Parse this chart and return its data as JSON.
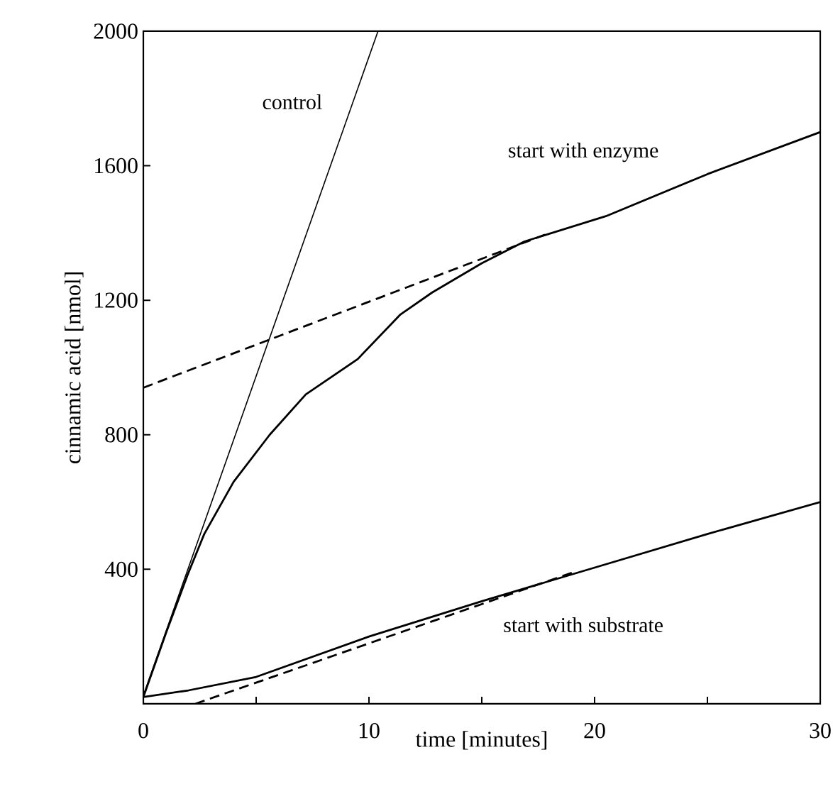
{
  "chart_data": {
    "type": "line",
    "xlabel": "time [minutes]",
    "ylabel": "cinnamic acid [nmol]",
    "xlim": [
      0,
      30
    ],
    "ylim": [
      0,
      2000
    ],
    "xticks": [
      0,
      {
        "value": 5,
        "label": null
      },
      10,
      {
        "value": 15,
        "label": null
      },
      20,
      {
        "value": 25,
        "label": null
      },
      30
    ],
    "yticks": [
      400,
      800,
      1200,
      1600,
      2000
    ],
    "grid": false,
    "legend": false,
    "marker": "none",
    "series": [
      {
        "name": "control",
        "color": "#000000",
        "line_style": "solid",
        "x": [
          0,
          10.4
        ],
        "values": [
          25,
          2000
        ]
      },
      {
        "name": "start with enzyme",
        "color": "#000000",
        "line_style": "solid",
        "x": [
          0,
          1,
          2,
          2.7,
          4,
          5.6,
          7.2,
          9.5,
          11.4,
          12.8,
          15,
          16.9,
          20.5,
          25,
          30
        ],
        "values": [
          20,
          210,
          390,
          505,
          660,
          800,
          920,
          1025,
          1158,
          1223,
          1310,
          1375,
          1450,
          1575,
          1700
        ]
      },
      {
        "color": "#000000",
        "line_style": "dashed",
        "x": [
          0,
          18
        ],
        "values": [
          940,
          1400
        ]
      },
      {
        "name": "start with substrate",
        "color": "#000000",
        "line_style": "solid",
        "x": [
          0,
          2,
          5,
          10,
          15,
          20,
          25,
          30
        ],
        "values": [
          20,
          40,
          80,
          200,
          305,
          405,
          505,
          600
        ]
      },
      {
        "color": "#000000",
        "line_style": "dashed",
        "x": [
          2.3,
          19
        ],
        "values": [
          0,
          390
        ]
      }
    ]
  }
}
